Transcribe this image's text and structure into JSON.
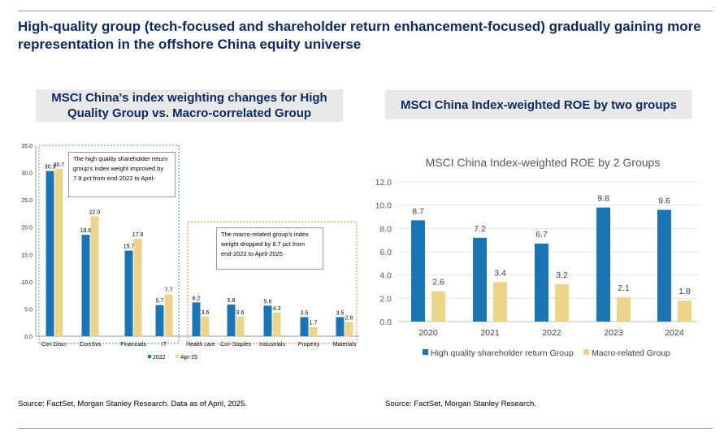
{
  "main_title": "High-quality group (tech-focused and shareholder return enhancement-focused) gradually gaining more representation in the offshore China equity universe",
  "left_panel_title": "MSCI China's index weighting changes for High Quality Group  vs. Macro-correlated Group",
  "right_panel_title": "MSCI China Index-weighted ROE by two groups",
  "left_source": "Source: FactSet, Morgan Stanley Research. Data as of April, 2025.",
  "right_source": "Source: FactSet, Morgan Stanley Research.",
  "colors": {
    "blue": "#1b75b4",
    "tan": "#ecd48a",
    "navy": "#0b2a66",
    "green_box": "#3aa655",
    "orange_box": "#e07b39"
  },
  "chart_data": [
    {
      "type": "bar",
      "title": "",
      "categories": [
        "Con Discr.",
        "ComSvs",
        "Financials",
        "IT",
        "Health care",
        "Con Staples",
        "Industrials",
        "Property",
        "Materials"
      ],
      "series": [
        {
          "name": "2022",
          "values": [
            30.3,
            18.6,
            15.7,
            5.7,
            6.2,
            5.8,
            5.6,
            3.5,
            3.5
          ]
        },
        {
          "name": "Apr-25",
          "values": [
            30.7,
            22.0,
            17.9,
            7.7,
            3.6,
            3.6,
            4.3,
            1.7,
            2.6
          ]
        }
      ],
      "ylim": [
        0,
        35
      ],
      "yticks": [
        "0.0",
        "5.0",
        "10.0",
        "15.0",
        "20.0",
        "25.0",
        "30.0",
        "35.0"
      ],
      "legend_position": "bottom-left",
      "grid": false,
      "annotations": [
        "The high quality shareholder return group's index weight improved by 7.9 pct from end-2022 to April-",
        "The macro-related group's index weight dropped by 8.7 pct from end-2022 to April-2025"
      ]
    },
    {
      "type": "bar",
      "title": "MSCI China Index-weighted ROE by 2 Groups",
      "categories": [
        "2020",
        "2021",
        "2022",
        "2023",
        "2024"
      ],
      "series": [
        {
          "name": "High quality shareholder return Group",
          "values": [
            8.7,
            7.2,
            6.7,
            9.8,
            9.6
          ]
        },
        {
          "name": "Macro-related Group",
          "values": [
            2.6,
            3.4,
            3.2,
            2.1,
            1.8
          ]
        }
      ],
      "ylim": [
        0,
        12
      ],
      "yticks": [
        "0.0",
        "2.0",
        "4.0",
        "6.0",
        "8.0",
        "10.0",
        "12.0"
      ],
      "legend_position": "bottom",
      "grid": true
    }
  ]
}
